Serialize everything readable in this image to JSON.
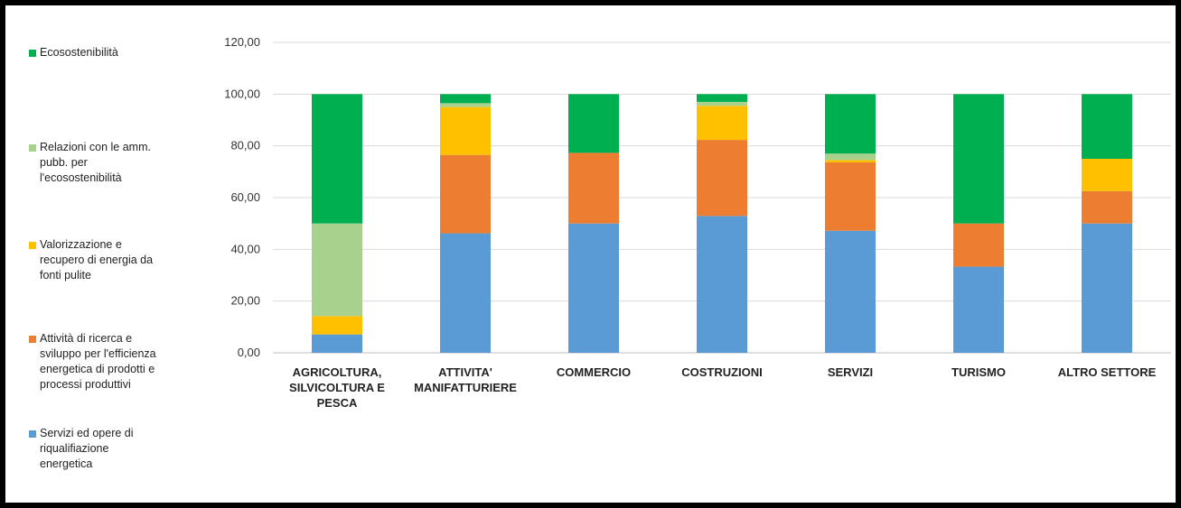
{
  "chart_data": {
    "type": "bar",
    "stacked": true,
    "title": "",
    "xlabel": "",
    "ylabel": "",
    "ylim": [
      0,
      120
    ],
    "yticks": [
      "0,00",
      "20,00",
      "40,00",
      "60,00",
      "80,00",
      "100,00",
      "120,00"
    ],
    "grid": true,
    "legend_position": "left",
    "categories": [
      "AGRICOLTURA,\nSILVICOLTURA E\nPESCA",
      "ATTIVITA'\nMANIFATTURIERE",
      "COMMERCIO",
      "COSTRUZIONI",
      "SERVIZI",
      "TURISMO",
      "ALTRO SETTORE"
    ],
    "series": [
      {
        "name": "Servizi ed opere di riqualifiazione energetica",
        "color": "#5b9bd5",
        "values": [
          7.1,
          46.2,
          50.0,
          52.9,
          47.2,
          33.3,
          50.0
        ]
      },
      {
        "name": "Attività di ricerca e sviluppo per l'efficienza energetica di prodotti e processi produttivi",
        "color": "#ed7d31",
        "values": [
          0.0,
          30.3,
          27.3,
          29.4,
          26.4,
          16.7,
          12.5
        ]
      },
      {
        "name": "Valorizzazione e recupero di energia da fonti pulite",
        "color": "#ffc000",
        "values": [
          7.1,
          18.5,
          0.0,
          13.2,
          0.9,
          0.0,
          12.5
        ]
      },
      {
        "name": "Relazioni con le amm. pubb. per l'ecosostenibilità",
        "color": "#a9d18e",
        "values": [
          35.8,
          1.5,
          0.0,
          1.5,
          2.5,
          0.0,
          0.0
        ]
      },
      {
        "name": "Ecosostenibilità",
        "color": "#00b050",
        "values": [
          50.0,
          3.5,
          22.7,
          3.0,
          23.0,
          50.0,
          25.0
        ]
      }
    ]
  },
  "legend": [
    {
      "label": "Ecosostenibilità",
      "color": "#00b050"
    },
    {
      "label": "Relazioni con le amm.\npubb. per\nl'ecosostenibilità",
      "color": "#a9d18e"
    },
    {
      "label": "Valorizzazione e\nrecupero di energia da\nfonti pulite",
      "color": "#ffc000"
    },
    {
      "label": "Attività di ricerca e\nsviluppo per l'efficienza\nenergetica di prodotti e\nprocessi produttivi",
      "color": "#ed7d31"
    },
    {
      "label": "Servizi ed opere di\nriqualifiazione\nenergetica",
      "color": "#5b9bd5"
    }
  ]
}
